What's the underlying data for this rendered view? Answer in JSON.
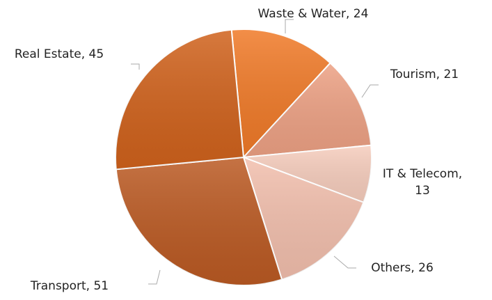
{
  "chart_data": {
    "type": "pie",
    "categories": [
      "Waste & Water",
      "Tourism",
      "IT & Telecom",
      "Others",
      "Transport",
      "Real Estate"
    ],
    "values": [
      24,
      21,
      13,
      26,
      51,
      45
    ],
    "colors": [
      "#f07a28",
      "#eda184",
      "#f6cdbd",
      "#f2bfad",
      "#bb5a23",
      "#d0621c"
    ],
    "label_separator": ", "
  }
}
